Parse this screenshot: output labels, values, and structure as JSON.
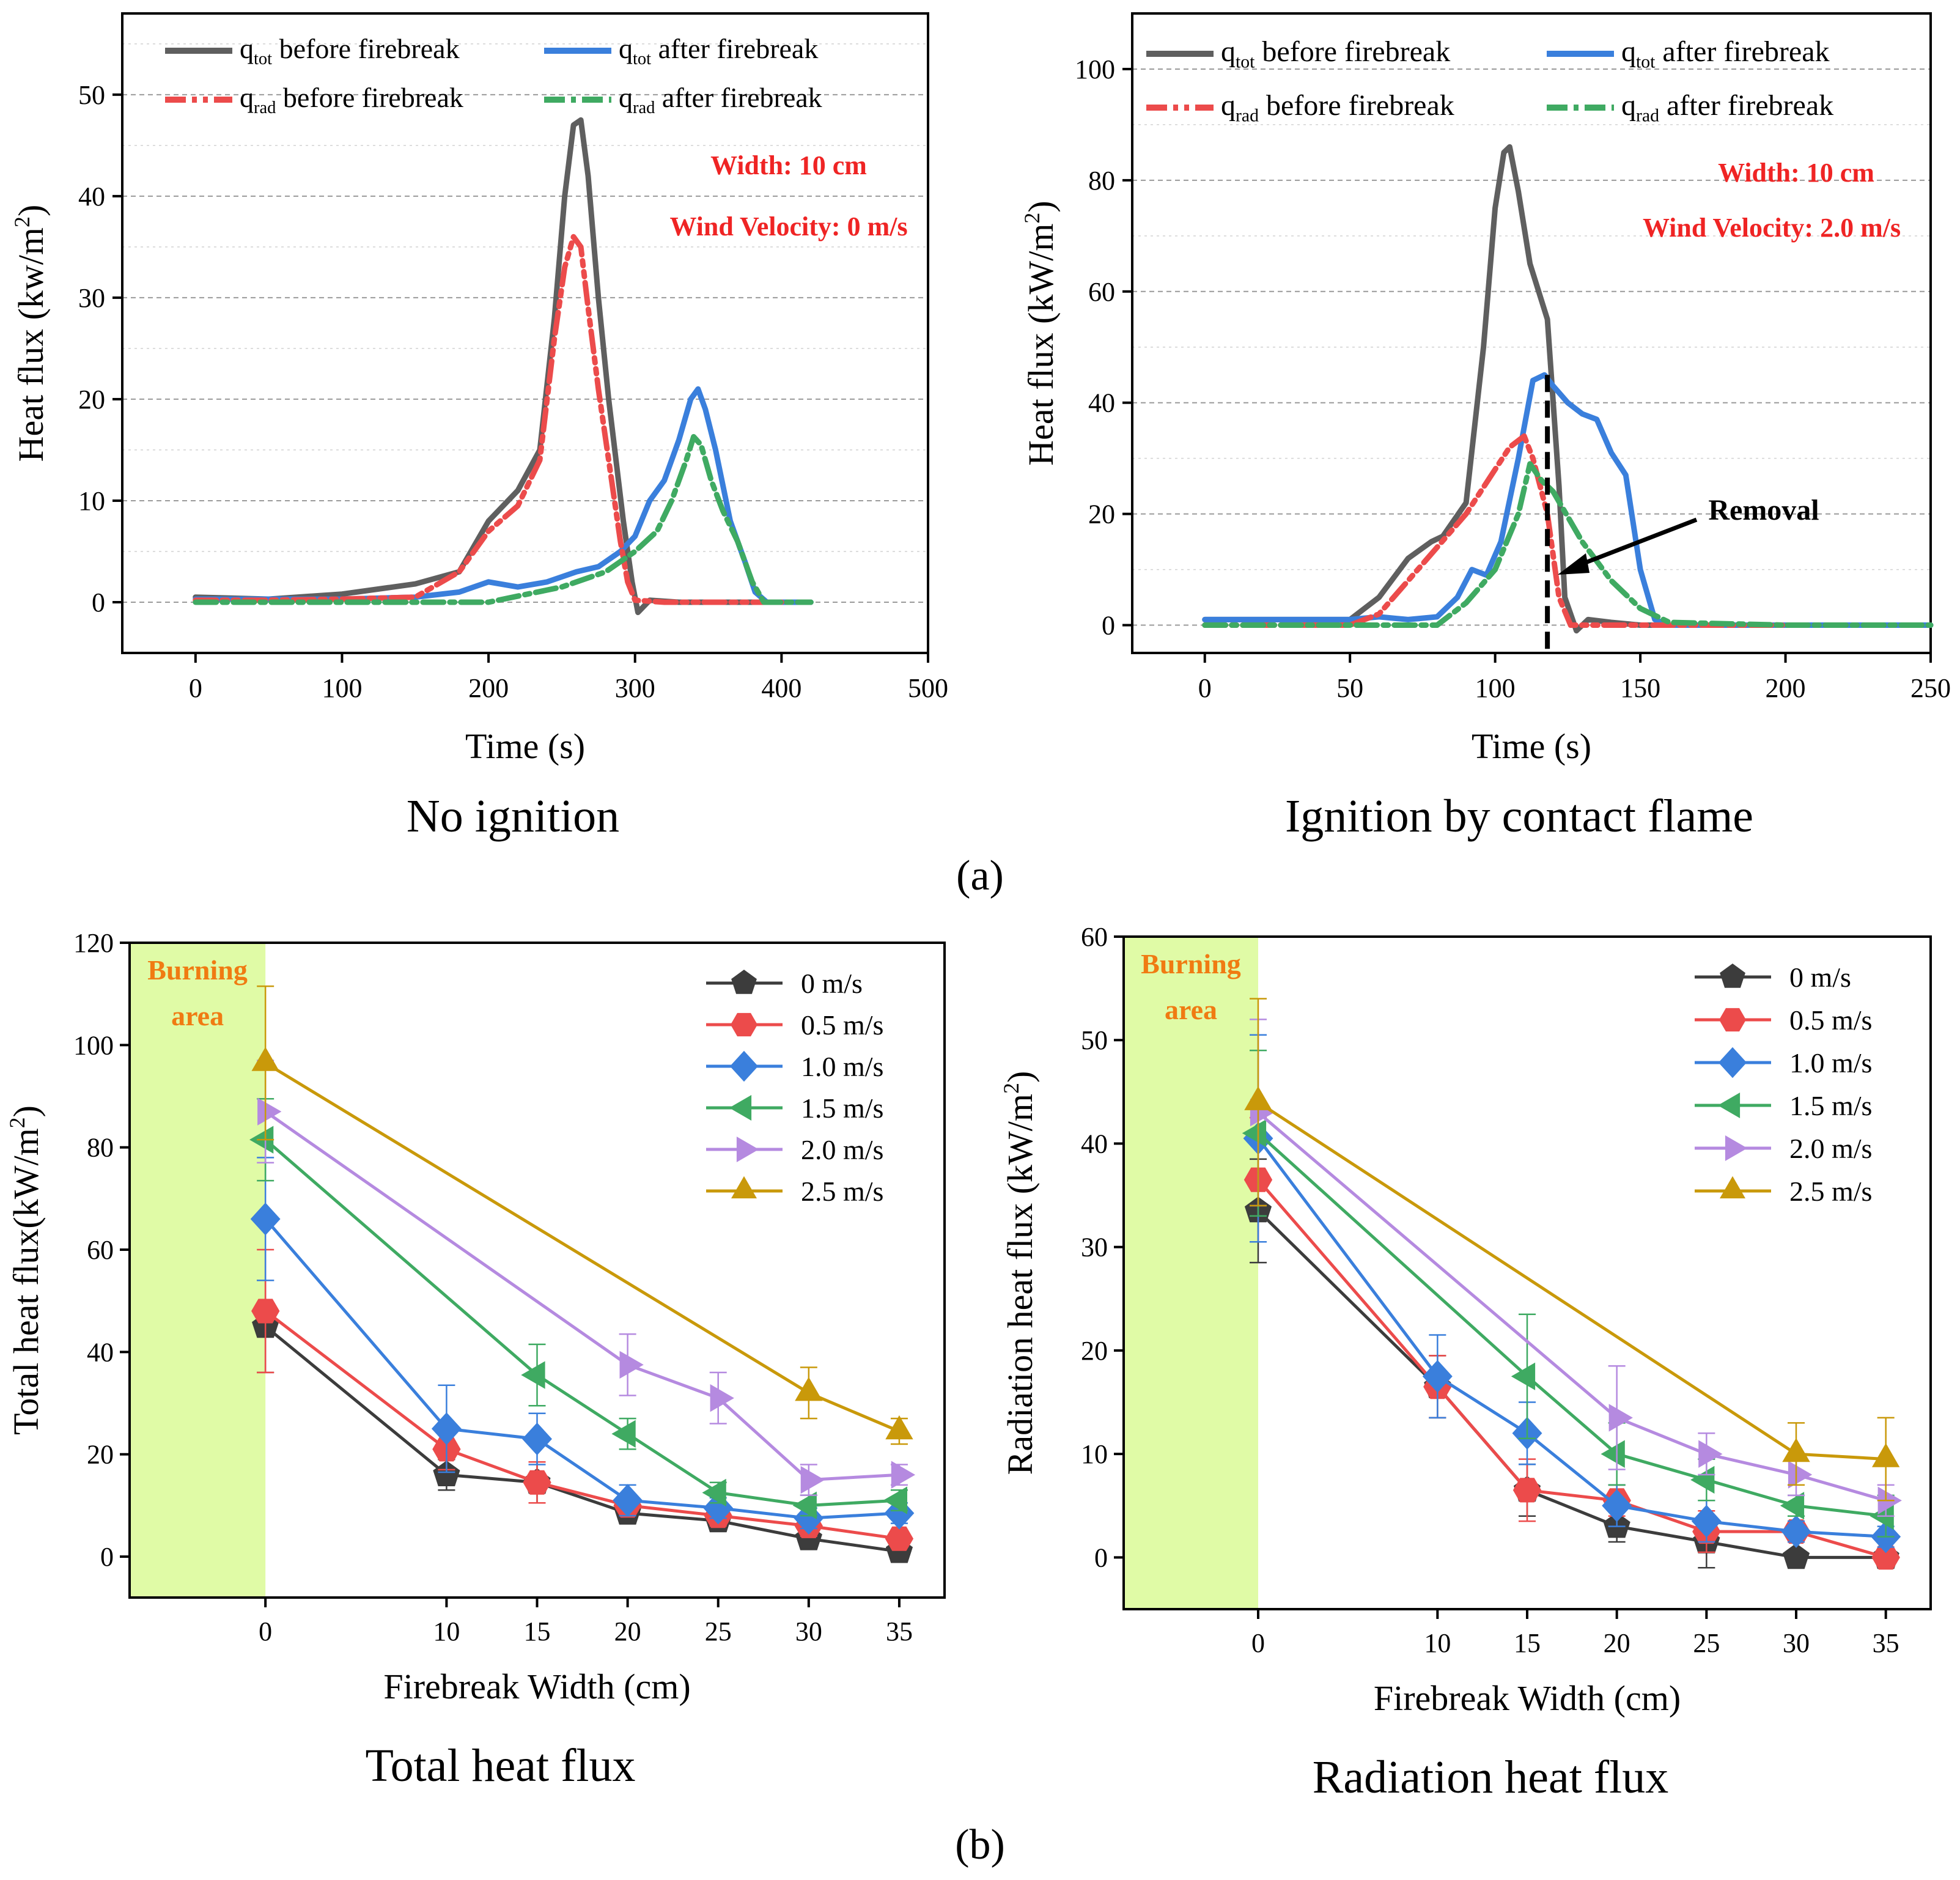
{
  "figure": {
    "part_a_label": "(a)",
    "part_b_label": "(b)"
  },
  "colors": {
    "gray": "#5f5f5f",
    "red": "#ec4b4b",
    "blue": "#3a7fdc",
    "green": "#3faa62",
    "purple": "#b58ae0",
    "gold": "#c9990a",
    "burning": "#e0fba6",
    "annotation_red": "#ef2424",
    "annotation_orange": "#f07b12"
  },
  "chart_data": [
    {
      "id": "a1",
      "type": "line",
      "caption": "No ignition",
      "xlabel": "Time (s)",
      "ylabel": "Heat flux (kw/m²)",
      "xlim": [
        -50,
        500
      ],
      "ylim": [
        -5,
        58
      ],
      "xticks": [
        "0",
        "100",
        "200",
        "300",
        "400",
        "500"
      ],
      "yticks": [
        "0",
        "10",
        "20",
        "30",
        "40",
        "50"
      ],
      "annotations": [
        "Width: 10 cm",
        "Wind Velocity: 0 m/s"
      ],
      "legend": [
        "qtot before firebreak",
        "qtot after firebreak",
        "qrad before firebreak",
        "qrad after firebreak"
      ],
      "series": [
        {
          "name": "qtot before firebreak",
          "x": [
            0,
            50,
            100,
            150,
            180,
            200,
            220,
            235,
            245,
            252,
            258,
            263,
            268,
            275,
            282,
            292,
            298,
            302,
            310,
            330,
            360,
            400,
            420
          ],
          "y": [
            0.5,
            0.3,
            0.8,
            1.8,
            3,
            8,
            11,
            15,
            28,
            40,
            47,
            47.5,
            42,
            30,
            20,
            8,
            2,
            -1,
            0.2,
            0,
            0,
            0,
            0
          ]
        },
        {
          "name": "qtot after firebreak",
          "x": [
            0,
            50,
            100,
            150,
            180,
            200,
            220,
            240,
            260,
            275,
            290,
            300,
            310,
            320,
            330,
            338,
            343,
            348,
            355,
            365,
            375,
            382,
            390,
            420
          ],
          "y": [
            0.3,
            0.3,
            0.3,
            0.5,
            1,
            2,
            1.5,
            2,
            3,
            3.5,
            5,
            6.5,
            10,
            12,
            16,
            20,
            21,
            19,
            15,
            8,
            4,
            1,
            0,
            0
          ]
        },
        {
          "name": "qrad before firebreak",
          "x": [
            0,
            50,
            100,
            150,
            180,
            200,
            220,
            235,
            245,
            252,
            258,
            263,
            268,
            275,
            282,
            290,
            295,
            300,
            320,
            360,
            400
          ],
          "y": [
            0.2,
            0.2,
            0.3,
            0.5,
            3,
            7,
            9.5,
            14,
            26,
            33,
            36,
            35,
            29,
            21,
            14,
            6,
            2,
            0.2,
            0,
            0,
            0
          ]
        },
        {
          "name": "qrad after firebreak",
          "x": [
            0,
            50,
            100,
            150,
            200,
            250,
            280,
            300,
            315,
            325,
            335,
            340,
            345,
            352,
            360,
            370,
            380,
            388,
            400,
            420
          ],
          "y": [
            0,
            0,
            0,
            0,
            0,
            1.5,
            3,
            5,
            7,
            10,
            14,
            16.3,
            15.5,
            12,
            9,
            6,
            2,
            0,
            0,
            0
          ]
        }
      ]
    },
    {
      "id": "a2",
      "type": "line",
      "caption": "Ignition by contact flame",
      "xlabel": "Time (s)",
      "ylabel": "Heat flux (kW/m²)",
      "xlim": [
        -25,
        250
      ],
      "ylim": [
        -5,
        110
      ],
      "xticks": [
        "0",
        "50",
        "100",
        "150",
        "200",
        "250"
      ],
      "yticks": [
        "0",
        "20",
        "40",
        "60",
        "80",
        "100"
      ],
      "annotations": [
        "Width: 10 cm",
        "Wind Velocity: 2.0 m/s",
        "Removal"
      ],
      "removal_x": 118,
      "legend": [
        "qtot before firebreak",
        "qtot after firebreak",
        "qrad before firebreak",
        "qrad after firebreak"
      ],
      "series": [
        {
          "name": "qtot before firebreak",
          "x": [
            0,
            30,
            50,
            60,
            70,
            78,
            82,
            90,
            96,
            100,
            103,
            105,
            108,
            112,
            118,
            122,
            124,
            128,
            132,
            140,
            150,
            170,
            200,
            250
          ],
          "y": [
            1,
            1,
            1,
            5,
            12,
            15,
            16,
            22,
            50,
            75,
            85,
            86,
            78,
            65,
            55,
            25,
            5,
            -1,
            1,
            0.5,
            0,
            0,
            0,
            0
          ]
        },
        {
          "name": "qtot after firebreak",
          "x": [
            0,
            50,
            60,
            70,
            80,
            87,
            92,
            97,
            102,
            108,
            113,
            117,
            120,
            125,
            130,
            135,
            140,
            145,
            150,
            155,
            160,
            200,
            250
          ],
          "y": [
            1,
            1,
            1.5,
            1,
            1.5,
            5,
            10,
            9,
            15,
            30,
            44,
            45,
            43,
            40,
            38,
            37,
            31,
            27,
            10,
            1,
            0,
            0,
            0
          ]
        },
        {
          "name": "qrad before firebreak",
          "x": [
            0,
            50,
            60,
            70,
            80,
            90,
            100,
            105,
            110,
            113,
            118,
            122,
            126,
            130,
            150,
            200
          ],
          "y": [
            0,
            0,
            2,
            8,
            14,
            20,
            28,
            32,
            34,
            30,
            20,
            5,
            0,
            0,
            0,
            0
          ]
        },
        {
          "name": "qrad after firebreak",
          "x": [
            0,
            80,
            90,
            100,
            108,
            112,
            116,
            120,
            130,
            140,
            150,
            160,
            200,
            250
          ],
          "y": [
            0,
            0,
            4,
            10,
            20,
            29,
            26,
            24,
            15,
            8,
            3,
            0.5,
            0,
            0
          ]
        }
      ]
    },
    {
      "id": "b1",
      "type": "line",
      "caption": "Total heat flux",
      "xlabel": "Firebreak Width (cm)",
      "ylabel": "Total heat flux(kW/m²)",
      "xlim": [
        -7.5,
        37.5
      ],
      "ylim": [
        -8,
        120
      ],
      "xticks": [
        "0",
        "10",
        "15",
        "20",
        "25",
        "30",
        "35"
      ],
      "yticks": [
        "0",
        "20",
        "40",
        "60",
        "80",
        "100",
        "120"
      ],
      "burning_area": {
        "x_end": 0,
        "label_line1": "Burning",
        "label_line2": "area"
      },
      "categories": [
        0,
        10,
        15,
        20,
        25,
        30,
        35
      ],
      "series": [
        {
          "name": "0 m/s",
          "x": [
            0,
            10,
            15,
            20,
            25,
            30,
            35
          ],
          "values": [
            45,
            16,
            14.5,
            8.5,
            7,
            3.5,
            1
          ],
          "errors": [
            9,
            3,
            4,
            2,
            2,
            2,
            1
          ]
        },
        {
          "name": "0.5 m/s",
          "x": [
            0,
            10,
            15,
            20,
            25,
            30,
            35
          ],
          "values": [
            48,
            21,
            14.5,
            10,
            8,
            6,
            3.5
          ],
          "errors": [
            12,
            4,
            4,
            2,
            2,
            2,
            1.5
          ]
        },
        {
          "name": "1.0 m/s",
          "x": [
            0,
            10,
            15,
            20,
            25,
            30,
            35
          ],
          "values": [
            66,
            25,
            23,
            11,
            9.5,
            7.5,
            8.5
          ],
          "errors": [
            12,
            8.5,
            5,
            3,
            2,
            2,
            2
          ]
        },
        {
          "name": "1.5 m/s",
          "x": [
            0,
            10,
            15,
            20,
            25,
            30,
            35
          ],
          "values": [
            81.5,
            null,
            35.5,
            24,
            12.5,
            10,
            11
          ],
          "errors": [
            8,
            null,
            6,
            3,
            2,
            2,
            2
          ]
        },
        {
          "name": "2.0 m/s",
          "x": [
            0,
            10,
            15,
            20,
            25,
            30,
            35
          ],
          "values": [
            87,
            null,
            null,
            37.5,
            31,
            15,
            16
          ],
          "errors": [
            10,
            null,
            null,
            6,
            5,
            3,
            2
          ]
        },
        {
          "name": "2.5 m/s",
          "x": [
            0,
            10,
            15,
            20,
            25,
            30,
            35
          ],
          "values": [
            96.5,
            null,
            null,
            null,
            null,
            32,
            24.5
          ],
          "errors": [
            15,
            null,
            null,
            null,
            null,
            5,
            2.5
          ]
        }
      ]
    },
    {
      "id": "b2",
      "type": "line",
      "caption": "Radiation heat flux",
      "xlabel": "Firebreak Width (cm)",
      "ylabel": "Radiation heat flux (kW/m²)",
      "xlim": [
        -7.5,
        37.5
      ],
      "ylim": [
        -5,
        60
      ],
      "xticks": [
        "0",
        "10",
        "15",
        "20",
        "25",
        "30",
        "35"
      ],
      "yticks": [
        "0",
        "10",
        "20",
        "30",
        "40",
        "50",
        "60"
      ],
      "burning_area": {
        "x_end": 0,
        "label_line1": "Burning",
        "label_line2": "area"
      },
      "categories": [
        0,
        10,
        15,
        20,
        25,
        30,
        35
      ],
      "series": [
        {
          "name": "0 m/s",
          "x": [
            0,
            10,
            15,
            20,
            25,
            30,
            35
          ],
          "values": [
            33.5,
            16.5,
            6.5,
            3,
            1.5,
            0,
            0
          ],
          "errors": [
            5,
            3,
            2.5,
            1.5,
            2.5,
            0.2,
            0.2
          ]
        },
        {
          "name": "0.5 m/s",
          "x": [
            0,
            10,
            15,
            20,
            25,
            30,
            35
          ],
          "values": [
            36.5,
            16.5,
            6.5,
            5.5,
            2.5,
            2.5,
            0
          ],
          "errors": [
            6,
            3,
            3,
            1.5,
            2,
            1,
            0.5
          ]
        },
        {
          "name": "1.0 m/s",
          "x": [
            0,
            10,
            15,
            20,
            25,
            30,
            35
          ],
          "values": [
            40.5,
            17.5,
            12,
            5,
            3.5,
            2.5,
            2
          ],
          "errors": [
            10,
            4,
            3,
            2,
            2,
            1,
            1
          ]
        },
        {
          "name": "1.5 m/s",
          "x": [
            0,
            10,
            15,
            20,
            25,
            30,
            35
          ],
          "values": [
            41,
            null,
            17.5,
            10,
            7.5,
            5,
            4
          ],
          "errors": [
            8,
            null,
            6,
            3,
            2,
            1,
            2
          ]
        },
        {
          "name": "2.0 m/s",
          "x": [
            0,
            10,
            15,
            20,
            25,
            30,
            35
          ],
          "values": [
            43,
            null,
            null,
            13.5,
            10,
            8,
            5.5
          ],
          "errors": [
            9,
            null,
            null,
            5,
            2,
            2,
            1.5
          ]
        },
        {
          "name": "2.5 m/s",
          "x": [
            0,
            10,
            15,
            20,
            25,
            30,
            35
          ],
          "values": [
            44,
            null,
            null,
            null,
            null,
            10,
            9.5
          ],
          "errors": [
            10,
            null,
            null,
            null,
            null,
            3,
            4
          ]
        }
      ]
    }
  ]
}
